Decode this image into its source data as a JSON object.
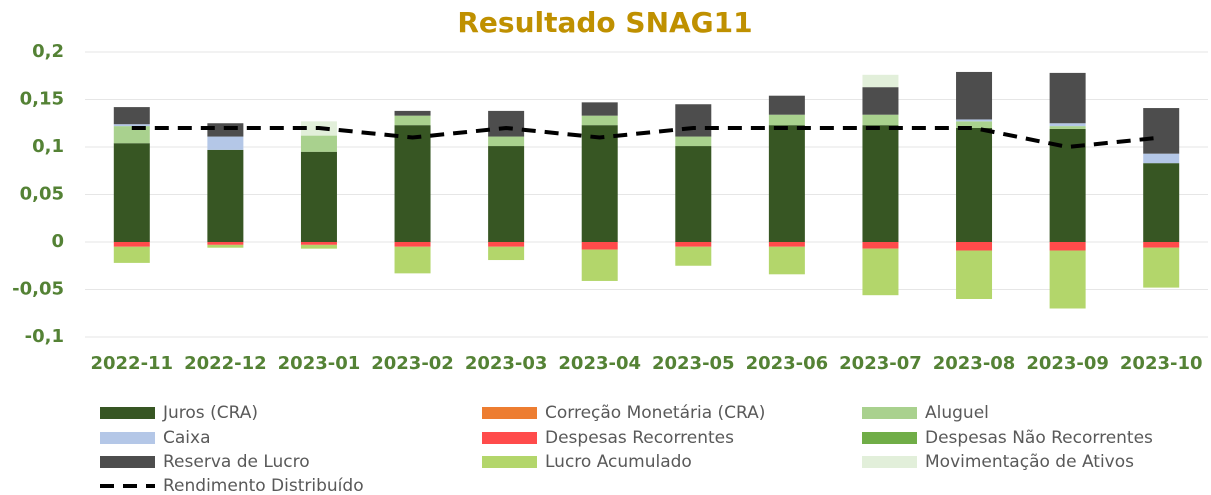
{
  "chart_data": {
    "type": "stacked_bar_line",
    "title": "Resultado SNAG11",
    "categories": [
      "2022-11",
      "2022-12",
      "2023-01",
      "2023-02",
      "2023-03",
      "2023-04",
      "2023-05",
      "2023-06",
      "2023-07",
      "2023-08",
      "2023-09",
      "2023-10"
    ],
    "series": [
      {
        "name": "Juros (CRA)",
        "color": "#375623",
        "values": [
          0.104,
          0.097,
          0.095,
          0.123,
          0.101,
          0.123,
          0.101,
          0.123,
          0.123,
          0.12,
          0.119,
          0.083
        ]
      },
      {
        "name": "Correção Monetária (CRA)",
        "color": "#ed7d31",
        "values": [
          0,
          0,
          0,
          0,
          0,
          0,
          0,
          0,
          0,
          0,
          0,
          0
        ]
      },
      {
        "name": "Aluguel",
        "color": "#a9d18e",
        "values": [
          0.018,
          0,
          0.017,
          0.01,
          0.01,
          0.01,
          0.01,
          0.011,
          0.011,
          0.007,
          0.003,
          0
        ]
      },
      {
        "name": "Caixa",
        "color": "#b4c7e7",
        "values": [
          0.002,
          0.014,
          0,
          0,
          0,
          0,
          0,
          0,
          0,
          0.002,
          0.003,
          0.01
        ]
      },
      {
        "name": "Despesas Recorrentes",
        "color": "#ff4b4b",
        "values": [
          -0.005,
          -0.003,
          -0.003,
          -0.005,
          -0.005,
          -0.008,
          -0.005,
          -0.005,
          -0.007,
          -0.009,
          -0.009,
          -0.006
        ]
      },
      {
        "name": "Despesas Não Recorrentes",
        "color": "#70ad47",
        "values": [
          0,
          0,
          0,
          0,
          0,
          0,
          0,
          0,
          0,
          0,
          0,
          0
        ]
      },
      {
        "name": "Reserva de Lucro",
        "color": "#4d4d4d",
        "values": [
          0.018,
          0.014,
          0,
          0.005,
          0.027,
          0.014,
          0.034,
          0.02,
          0.029,
          0.05,
          0.053,
          0.048
        ]
      },
      {
        "name": "Lucro Acumulado",
        "color": "#b3d66b",
        "values": [
          -0.017,
          -0.003,
          -0.004,
          -0.028,
          -0.014,
          -0.033,
          -0.02,
          -0.029,
          -0.049,
          -0.051,
          -0.061,
          -0.042
        ]
      },
      {
        "name": "Movimentação de Ativos",
        "color": "#e2efda",
        "values": [
          0,
          0,
          0.015,
          0,
          0,
          0,
          0,
          0,
          0.013,
          0,
          0,
          0
        ]
      },
      {
        "name": "Rendimento Distribuído",
        "color": "#000000",
        "kind": "line",
        "values": [
          0.12,
          0.12,
          0.12,
          0.11,
          0.12,
          0.11,
          0.12,
          0.12,
          0.12,
          0.12,
          0.1,
          0.11
        ]
      }
    ],
    "ylim": [
      -0.1,
      0.2
    ],
    "yticks": [
      {
        "value": -0.1,
        "label": "-0,1"
      },
      {
        "value": -0.05,
        "label": "-0,05"
      },
      0,
      {
        "value": 0.05,
        "label": "0,05"
      },
      {
        "value": 0.1,
        "label": "0,1"
      },
      {
        "value": 0.15,
        "label": "0,15"
      },
      {
        "value": 0.2,
        "label": "0,2"
      }
    ],
    "grid": true
  }
}
